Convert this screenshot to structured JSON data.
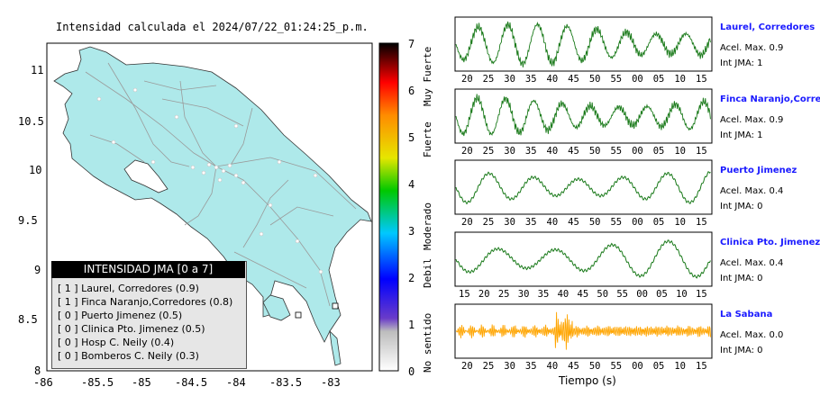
{
  "map": {
    "title": "Intensidad calculada el 2024/07/22_01:24:25_p.m.",
    "x_ticks": [
      "-86",
      "-85.5",
      "-85",
      "-84.5",
      "-84",
      "-83.5",
      "-83"
    ],
    "y_ticks": [
      "11",
      "10.5",
      "10",
      "9.5",
      "9",
      "8.5",
      "8"
    ]
  },
  "legend": {
    "title": "INTENSIDAD JMA [0 a 7]",
    "items": [
      "[ 1 ]  Laurel, Corredores (0.9)",
      "[ 1 ]  Finca Naranjo,Corredores (0.8)",
      "[ 0 ]  Puerto Jimenez (0.5)",
      "[ 0 ]  Clinica Pto. Jimenez (0.5)",
      "[ 0 ]  Hosp C. Neily (0.4)",
      "[ 0 ]  Bomberos C. Neily (0.3)"
    ]
  },
  "colorbar": {
    "ticks": [
      "7",
      "6",
      "5",
      "4",
      "3",
      "2",
      "1",
      "0"
    ],
    "labels": [
      "Muy Fuerte",
      "Fuerte",
      "Moderado",
      "Debil",
      "No sentido"
    ]
  },
  "waveforms": {
    "xlabel": "Tiempo (s)",
    "accel_color": "#1a7a1a",
    "noise_color": "#ffa500",
    "stations": [
      {
        "name": "Laurel, Corredores",
        "acel": "Acel. Max. 0.9",
        "int": "Int JMA: 1",
        "ticks": [
          "20",
          "25",
          "30",
          "35",
          "40",
          "45",
          "50",
          "55",
          "00",
          "05",
          "10",
          "15"
        ]
      },
      {
        "name": "Finca Naranjo,Corredores",
        "acel": "Acel. Max. 0.9",
        "int": "Int JMA: 1",
        "ticks": [
          "20",
          "25",
          "30",
          "35",
          "40",
          "45",
          "50",
          "55",
          "00",
          "05",
          "10",
          "15"
        ]
      },
      {
        "name": "Puerto Jimenez",
        "acel": "Acel. Max. 0.4",
        "int": "Int JMA: 0",
        "ticks": [
          "20",
          "25",
          "30",
          "35",
          "40",
          "45",
          "50",
          "55",
          "00",
          "05",
          "10",
          "15"
        ]
      },
      {
        "name": "Clinica Pto. Jimenez",
        "acel": "Acel. Max. 0.4",
        "int": "Int JMA: 0",
        "ticks": [
          "15",
          "20",
          "25",
          "30",
          "35",
          "40",
          "45",
          "50",
          "55",
          "00",
          "05",
          "10",
          "15"
        ]
      },
      {
        "name": "La Sabana",
        "acel": "Acel. Max. 0.0",
        "int": "Int JMA: 0",
        "ticks": [
          "20",
          "25",
          "30",
          "35",
          "40",
          "45",
          "50",
          "55",
          "00",
          "05",
          "10",
          "15"
        ]
      }
    ]
  },
  "chart_data": [
    {
      "type": "scatter",
      "title": "Intensidad calculada el 2024/07/22_01:24:25_p.m.",
      "xlim": [
        -86,
        -82.6
      ],
      "ylim": [
        8,
        11.3
      ],
      "x_ticks": [
        -86,
        -85.5,
        -85,
        -84.5,
        -84,
        -83.5,
        -83
      ],
      "y_ticks": [
        8,
        8.5,
        9,
        9.5,
        10,
        10.5,
        11
      ],
      "legend": [
        "Laurel, Corredores (0.9)",
        "Finca Naranjo,Corredores (0.8)",
        "Puerto Jimenez (0.5)",
        "Clinica Pto. Jimenez (0.5)",
        "Hosp C. Neily (0.4)",
        "Bomberos C. Neily (0.3)"
      ],
      "jma_intensity": [
        1,
        1,
        0,
        0,
        0,
        0
      ],
      "calculated_intensity": [
        0.9,
        0.8,
        0.5,
        0.5,
        0.4,
        0.3
      ],
      "colorbar_range": [
        0,
        7
      ]
    },
    {
      "type": "line",
      "xlabel": "Tiempo (s)",
      "series": [
        {
          "name": "Laurel, Corredores",
          "max_accel": 0.9,
          "jma": 1
        },
        {
          "name": "Finca Naranjo,Corredores",
          "max_accel": 0.9,
          "jma": 1
        },
        {
          "name": "Puerto Jimenez",
          "max_accel": 0.4,
          "jma": 0
        },
        {
          "name": "Clinica Pto. Jimenez",
          "max_accel": 0.4,
          "jma": 0
        },
        {
          "name": "La Sabana",
          "max_accel": 0.0,
          "jma": 0
        }
      ]
    }
  ]
}
